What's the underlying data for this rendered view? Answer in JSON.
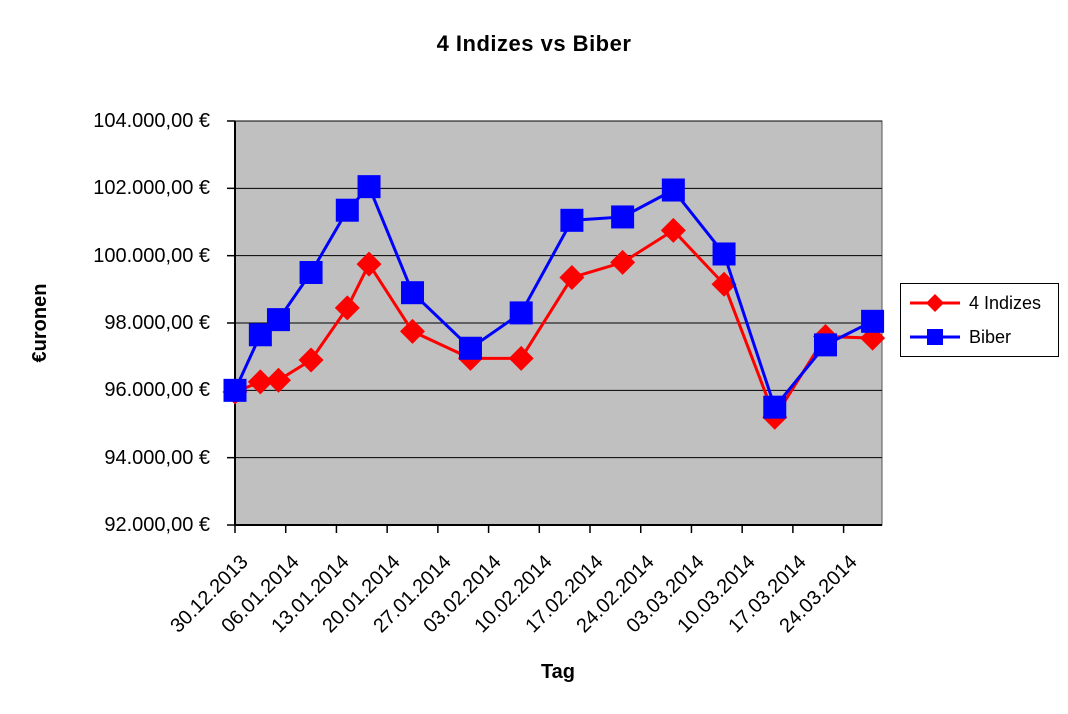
{
  "chart_data": {
    "type": "line",
    "title": "4 Indizes vs Biber",
    "xlabel": "Tag",
    "ylabel": "€uronen",
    "ylim": [
      92000,
      104000
    ],
    "y_tick_step": 2000,
    "grid": true,
    "plot_bg_color": "#C0C0C0",
    "gridline_color": "#000000",
    "legend_position": "right",
    "y_ticks": [
      {
        "value": 92000,
        "label": "92.000,00 €"
      },
      {
        "value": 94000,
        "label": "94.000,00 €"
      },
      {
        "value": 96000,
        "label": "96.000,00 €"
      },
      {
        "value": 98000,
        "label": "98.000,00 €"
      },
      {
        "value": 100000,
        "label": "100.000,00 €"
      },
      {
        "value": 102000,
        "label": "102.000,00 €"
      },
      {
        "value": 104000,
        "label": "104.000,00 €"
      }
    ],
    "x_ticks": [
      {
        "day": 0,
        "label": "30.12.2013"
      },
      {
        "day": 7,
        "label": "06.01.2014"
      },
      {
        "day": 14,
        "label": "13.01.2014"
      },
      {
        "day": 21,
        "label": "20.01.2014"
      },
      {
        "day": 28,
        "label": "27.01.2014"
      },
      {
        "day": 35,
        "label": "03.02.2014"
      },
      {
        "day": 42,
        "label": "10.02.2014"
      },
      {
        "day": 49,
        "label": "17.02.2014"
      },
      {
        "day": 56,
        "label": "24.02.2014"
      },
      {
        "day": 63,
        "label": "03.03.2014"
      },
      {
        "day": 70,
        "label": "10.03.2014"
      },
      {
        "day": 77,
        "label": "17.03.2014"
      },
      {
        "day": 84,
        "label": "24.03.2014"
      }
    ],
    "series": [
      {
        "name": "4 Indizes",
        "color": "#FF0000",
        "marker": "diamond",
        "x_days": [
          0,
          3.5,
          6,
          10.5,
          15.5,
          18.5,
          24.5,
          32.5,
          39.5,
          46.5,
          53.5,
          60.5,
          67.5,
          74.5,
          81.5,
          88
        ],
        "values": [
          95950,
          96250,
          96300,
          96900,
          98450,
          99750,
          97750,
          96950,
          96950,
          99350,
          99800,
          100750,
          99150,
          95200,
          97600,
          97550
        ]
      },
      {
        "name": "Biber",
        "color": "#0000FF",
        "marker": "square",
        "x_days": [
          0,
          3.5,
          6,
          10.5,
          15.5,
          18.5,
          24.5,
          32.5,
          39.5,
          46.5,
          53.5,
          60.5,
          67.5,
          74.5,
          81.5,
          88
        ],
        "values": [
          96000,
          97650,
          98100,
          99500,
          101350,
          102050,
          98900,
          97250,
          98300,
          101050,
          101150,
          101950,
          100050,
          95500,
          97350,
          98050
        ]
      }
    ]
  }
}
